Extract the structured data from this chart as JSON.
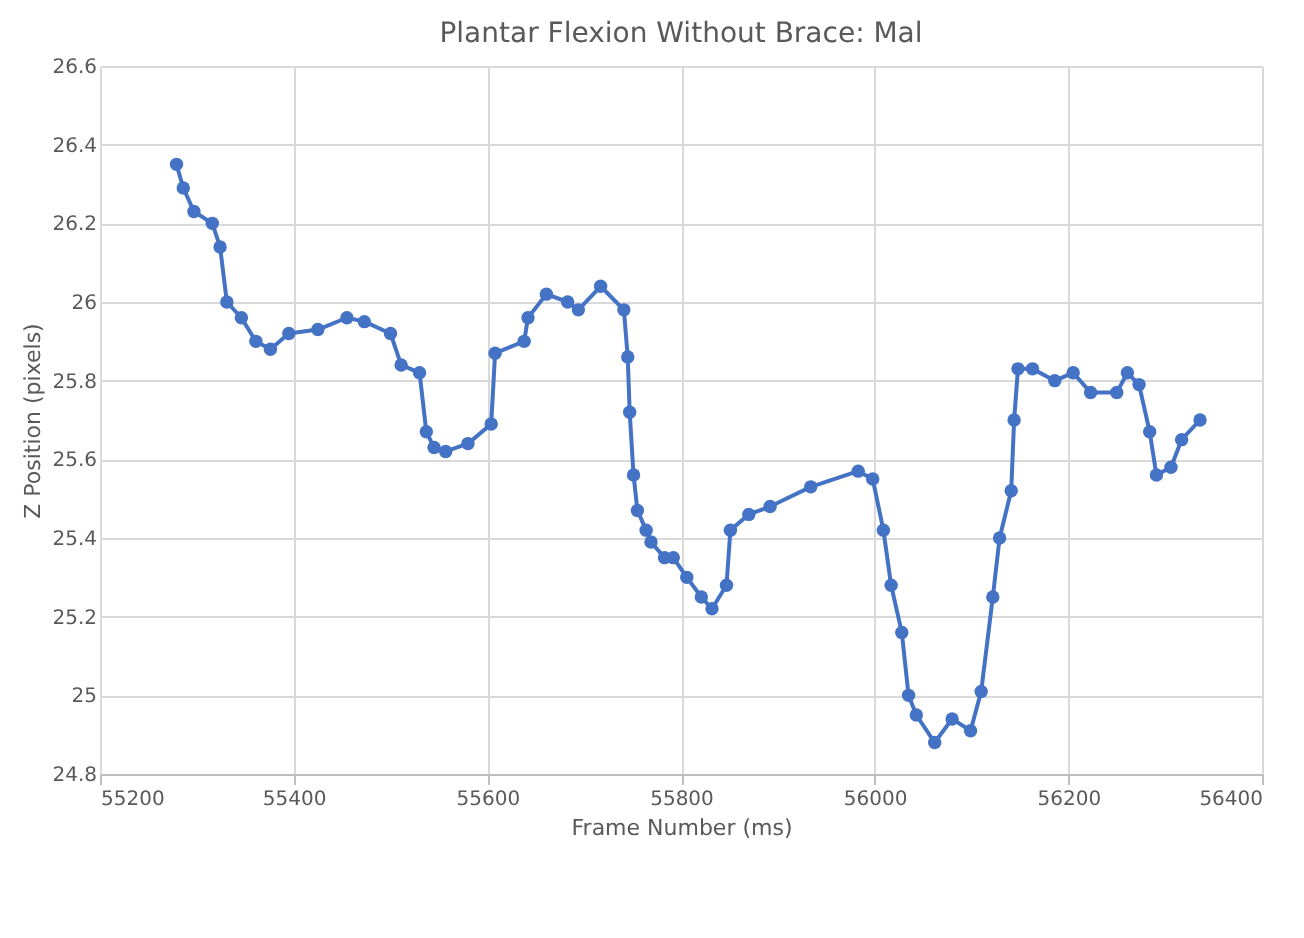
{
  "chart_data": {
    "type": "line",
    "title": "Plantar Flexion  Without  Brace: Mal",
    "xlabel": "Frame Number (ms)",
    "ylabel": "Z Position (pixels)",
    "x": [
      55279,
      55286,
      55297,
      55316,
      55324,
      55331,
      55346,
      55361,
      55376,
      55395,
      55425,
      55455,
      55473,
      55500,
      55511,
      55530,
      55537,
      55545,
      55557,
      55580,
      55604,
      55608,
      55638,
      55642,
      55661,
      55683,
      55694,
      55717,
      55741,
      55745,
      55747,
      55751,
      55755,
      55764,
      55769,
      55783,
      55792,
      55806,
      55821,
      55832,
      55847,
      55851,
      55870,
      55892,
      55934,
      55983,
      55998,
      56009,
      56017,
      56028,
      56035,
      56043,
      56062,
      56080,
      56099,
      56110,
      56122,
      56129,
      56141,
      56144,
      56148,
      56163,
      56186,
      56205,
      56223,
      56250,
      56261,
      56273,
      56284,
      56291,
      56306,
      56317,
      56336
    ],
    "series": [
      {
        "color": "#4472c4",
        "values": [
          26.35,
          26.29,
          26.23,
          26.2,
          26.14,
          26.0,
          25.96,
          25.9,
          25.88,
          25.92,
          25.93,
          25.96,
          25.95,
          25.92,
          25.84,
          25.82,
          25.67,
          25.63,
          25.62,
          25.64,
          25.69,
          25.87,
          25.9,
          25.96,
          26.02,
          26.0,
          25.98,
          26.04,
          25.98,
          25.86,
          25.72,
          25.56,
          25.47,
          25.42,
          25.39,
          25.35,
          25.35,
          25.3,
          25.25,
          25.22,
          25.28,
          25.42,
          25.46,
          25.48,
          25.53,
          25.57,
          25.55,
          25.42,
          25.28,
          25.16,
          25.0,
          24.95,
          24.88,
          24.94,
          24.91,
          25.01,
          25.25,
          25.4,
          25.52,
          25.7,
          25.83,
          25.83,
          25.8,
          25.82,
          25.77,
          25.77,
          25.82,
          25.79,
          25.67,
          25.56,
          25.58,
          25.65,
          25.7
        ]
      }
    ],
    "xlim": [
      55200,
      56400
    ],
    "xticks": [
      55200,
      55400,
      55600,
      55800,
      56000,
      56200,
      56400
    ],
    "ylim": [
      24.8,
      26.6
    ],
    "yticks": [
      24.8,
      25,
      25.2,
      25.4,
      25.6,
      25.8,
      26,
      26.2,
      26.4,
      26.6
    ],
    "grid": true,
    "marker": "circle",
    "line_style": "solid"
  }
}
